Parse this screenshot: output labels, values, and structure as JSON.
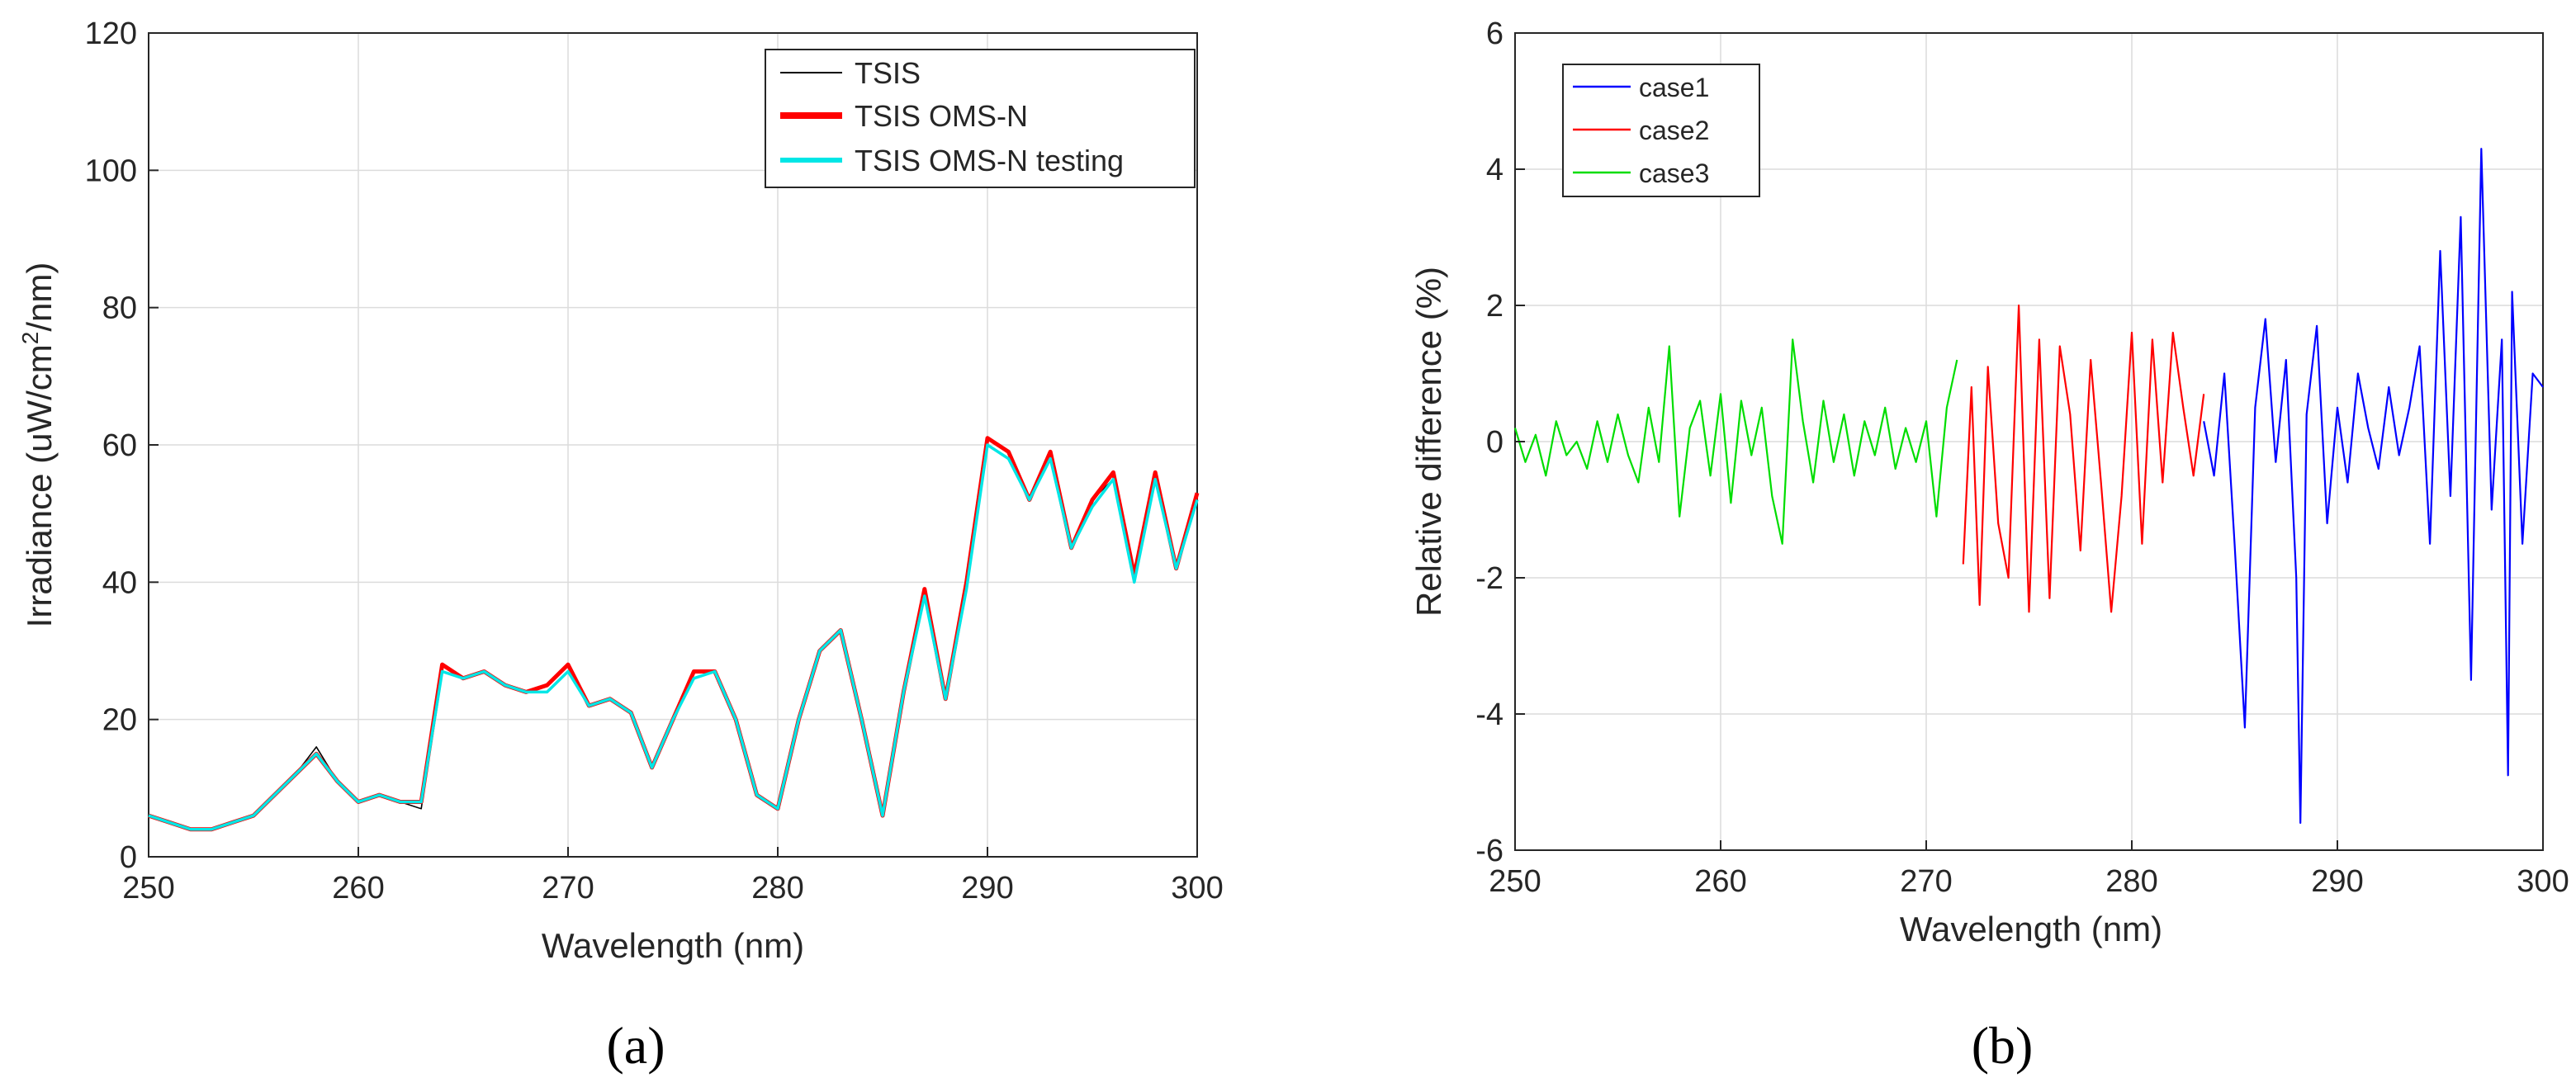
{
  "chart_data": [
    {
      "type": "line",
      "panel_label": "(a)",
      "title": "",
      "xlabel": "Wavelength (nm)",
      "ylabel": "Irradiance (uW/cm",
      "ylabel_sup": "2",
      "ylabel_tail": "/nm)",
      "xlim": [
        250,
        300
      ],
      "ylim": [
        0,
        120
      ],
      "xticks": [
        "250",
        "260",
        "270",
        "280",
        "290",
        "300"
      ],
      "yticks": [
        "0",
        "20",
        "40",
        "60",
        "80",
        "100",
        "120"
      ],
      "grid": true,
      "legend_position": "top-right",
      "series": [
        {
          "name": "TSIS",
          "color": "#000000",
          "x": [
            250,
            251,
            252,
            253,
            254,
            255,
            256,
            257,
            258,
            259,
            260,
            261,
            262,
            263,
            264,
            265,
            266,
            267,
            268,
            269,
            270,
            271,
            272,
            273,
            274,
            275,
            276,
            277,
            278,
            279,
            280,
            281,
            282,
            283,
            284,
            285,
            286,
            287,
            288,
            289,
            290,
            291,
            292,
            293,
            294,
            295,
            296,
            297,
            298,
            299,
            300
          ],
          "y": [
            6,
            5,
            4,
            4,
            5,
            6,
            9,
            12,
            16,
            11,
            8,
            9,
            8,
            7,
            28,
            26,
            27,
            25,
            24,
            25,
            28,
            22,
            23,
            21,
            13,
            20,
            27,
            27,
            20,
            9,
            7,
            20,
            30,
            33,
            20,
            6,
            24,
            39,
            23,
            40,
            60,
            58,
            52,
            58,
            45,
            52,
            55,
            40,
            55,
            42,
            52
          ]
        },
        {
          "name": "TSIS OMS-N",
          "color": "#ff0000",
          "x": [
            250,
            251,
            252,
            253,
            254,
            255,
            256,
            257,
            258,
            259,
            260,
            261,
            262,
            263,
            264,
            265,
            266,
            267,
            268,
            269,
            270,
            271,
            272,
            273,
            274,
            275,
            276,
            277,
            278,
            279,
            280,
            281,
            282,
            283,
            284,
            285,
            286,
            287,
            288,
            289,
            290,
            291,
            292,
            293,
            294,
            295,
            296,
            297,
            298,
            299,
            300
          ],
          "y": [
            6,
            5,
            4,
            4,
            5,
            6,
            9,
            12,
            15,
            11,
            8,
            9,
            8,
            8,
            28,
            26,
            27,
            25,
            24,
            25,
            28,
            22,
            23,
            21,
            13,
            20,
            27,
            27,
            20,
            9,
            7,
            20,
            30,
            33,
            20,
            6,
            24,
            39,
            23,
            40,
            61,
            59,
            52,
            59,
            45,
            52,
            56,
            41,
            56,
            42,
            53
          ]
        },
        {
          "name": "TSIS OMS-N testing",
          "color": "#00e6e6",
          "x": [
            250,
            251,
            252,
            253,
            254,
            255,
            256,
            257,
            258,
            259,
            260,
            261,
            262,
            263,
            264,
            265,
            266,
            267,
            268,
            269,
            270,
            271,
            272,
            273,
            274,
            275,
            276,
            277,
            278,
            279,
            280,
            281,
            282,
            283,
            284,
            285,
            286,
            287,
            288,
            289,
            290,
            291,
            292,
            293,
            294,
            295,
            296,
            297,
            298,
            299,
            300
          ],
          "y": [
            6,
            5,
            4,
            4,
            5,
            6,
            9,
            12,
            15,
            11,
            8,
            9,
            8,
            8,
            27,
            26,
            27,
            25,
            24,
            24,
            27,
            22,
            23,
            21,
            13,
            20,
            26,
            27,
            20,
            9,
            7,
            20,
            30,
            33,
            20,
            6,
            24,
            38,
            23,
            39,
            60,
            58,
            52,
            58,
            45,
            51,
            55,
            40,
            55,
            42,
            52
          ]
        }
      ]
    },
    {
      "type": "line",
      "panel_label": "(b)",
      "title": "",
      "xlabel": "Wavelength (nm)",
      "ylabel": "Relative difference (%)",
      "xlim": [
        250,
        300
      ],
      "ylim": [
        -6,
        6
      ],
      "xticks": [
        "250",
        "260",
        "270",
        "280",
        "290",
        "300"
      ],
      "yticks": [
        "-6",
        "-4",
        "-2",
        "0",
        "2",
        "4",
        "6"
      ],
      "grid": true,
      "legend_position": "top-left",
      "series": [
        {
          "name": "case1",
          "color": "#0000ff",
          "x": [
            283.5,
            284,
            284.5,
            285,
            285.5,
            286,
            286.5,
            287,
            287.5,
            288,
            288.2,
            288.5,
            289,
            289.5,
            290,
            290.5,
            291,
            291.5,
            292,
            292.5,
            293,
            293.5,
            294,
            294.5,
            295,
            295.5,
            296,
            296.5,
            297,
            297.5,
            298,
            298.3,
            298.5,
            299,
            299.5,
            300
          ],
          "y": [
            0.3,
            -0.5,
            1.0,
            -1.5,
            -4.2,
            0.5,
            1.8,
            -0.3,
            1.2,
            -2.0,
            -5.6,
            0.4,
            1.7,
            -1.2,
            0.5,
            -0.6,
            1.0,
            0.2,
            -0.4,
            0.8,
            -0.2,
            0.5,
            1.4,
            -1.5,
            2.8,
            -0.8,
            3.3,
            -3.5,
            4.3,
            -1.0,
            1.5,
            -4.9,
            2.2,
            -1.5,
            1.0,
            0.8
          ]
        },
        {
          "name": "case2",
          "color": "#ff0000",
          "x": [
            271.8,
            272.2,
            272.6,
            273,
            273.5,
            274,
            274.5,
            275,
            275.5,
            276,
            276.5,
            277,
            277.5,
            278,
            278.5,
            279,
            279.5,
            280,
            280.5,
            281,
            281.5,
            282,
            282.5,
            283,
            283.5
          ],
          "y": [
            -1.8,
            0.8,
            -2.4,
            1.1,
            -1.2,
            -2.0,
            2.0,
            -2.5,
            1.5,
            -2.3,
            1.4,
            0.4,
            -1.6,
            1.2,
            -0.6,
            -2.5,
            -0.8,
            1.6,
            -1.5,
            1.5,
            -0.6,
            1.6,
            0.5,
            -0.5,
            0.7
          ]
        },
        {
          "name": "case3",
          "color": "#00dd00",
          "x": [
            250,
            250.5,
            251,
            251.5,
            252,
            252.5,
            253,
            253.5,
            254,
            254.5,
            255,
            255.5,
            256,
            256.5,
            257,
            257.5,
            258,
            258.5,
            259,
            259.5,
            260,
            260.5,
            261,
            261.5,
            262,
            262.5,
            263,
            263.5,
            264,
            264.5,
            265,
            265.5,
            266,
            266.5,
            267,
            267.5,
            268,
            268.5,
            269,
            269.5,
            270,
            270.5,
            271,
            271.5
          ],
          "y": [
            0.2,
            -0.3,
            0.1,
            -0.5,
            0.3,
            -0.2,
            0.0,
            -0.4,
            0.3,
            -0.3,
            0.4,
            -0.2,
            -0.6,
            0.5,
            -0.3,
            1.4,
            -1.1,
            0.2,
            0.6,
            -0.5,
            0.7,
            -0.9,
            0.6,
            -0.2,
            0.5,
            -0.8,
            -1.5,
            1.5,
            0.3,
            -0.6,
            0.6,
            -0.3,
            0.4,
            -0.5,
            0.3,
            -0.2,
            0.5,
            -0.4,
            0.2,
            -0.3,
            0.3,
            -1.1,
            0.5,
            1.2
          ]
        }
      ]
    }
  ]
}
